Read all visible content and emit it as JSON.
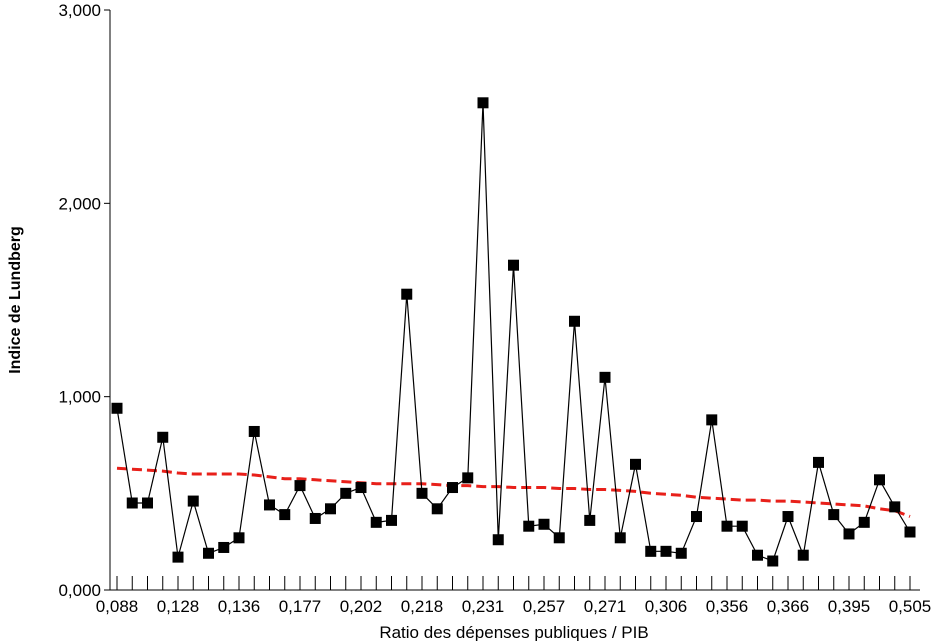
{
  "chart_data": {
    "type": "line",
    "title": "",
    "xlabel": "Ratio des dépenses publiques / PIB",
    "ylabel": "Indice de Lundberg",
    "ylim": [
      0,
      3
    ],
    "yticks": [
      "0,000",
      "1,000",
      "2,000",
      "3,000"
    ],
    "xtick_labels": [
      "0,088",
      "0,128",
      "0,136",
      "0,177",
      "0,202",
      "0,218",
      "0,231",
      "0,257",
      "0,271",
      "0,306",
      "0,356",
      "0,366",
      "0,395",
      "0,505"
    ],
    "grid": false,
    "legend": "none",
    "series": [
      {
        "style": "black line with square markers",
        "color": "#000000",
        "values": [
          0.94,
          0.45,
          0.45,
          0.79,
          0.17,
          0.46,
          0.19,
          0.22,
          0.27,
          0.82,
          0.44,
          0.39,
          0.54,
          0.37,
          0.42,
          0.5,
          0.53,
          0.35,
          0.36,
          1.53,
          0.5,
          0.42,
          0.53,
          0.58,
          2.52,
          0.26,
          1.68,
          0.33,
          0.34,
          0.27,
          1.39,
          0.36,
          1.1,
          0.27,
          0.65,
          0.2,
          0.2,
          0.19,
          0.38,
          0.88,
          0.33,
          0.33,
          0.18,
          0.15,
          0.38,
          0.18,
          0.66,
          0.39,
          0.29,
          0.35,
          0.57,
          0.43,
          0.3
        ]
      },
      {
        "style": "red dashed trend",
        "color": "#e8201a",
        "values": [
          0.63,
          0.625,
          0.62,
          0.615,
          0.605,
          0.6,
          0.6,
          0.6,
          0.6,
          0.595,
          0.585,
          0.575,
          0.575,
          0.57,
          0.565,
          0.56,
          0.555,
          0.55,
          0.55,
          0.55,
          0.55,
          0.545,
          0.54,
          0.54,
          0.535,
          0.535,
          0.53,
          0.53,
          0.53,
          0.525,
          0.525,
          0.52,
          0.52,
          0.515,
          0.51,
          0.5,
          0.495,
          0.49,
          0.48,
          0.475,
          0.47,
          0.465,
          0.465,
          0.46,
          0.46,
          0.455,
          0.45,
          0.445,
          0.44,
          0.435,
          0.42,
          0.41,
          0.38
        ]
      }
    ]
  }
}
